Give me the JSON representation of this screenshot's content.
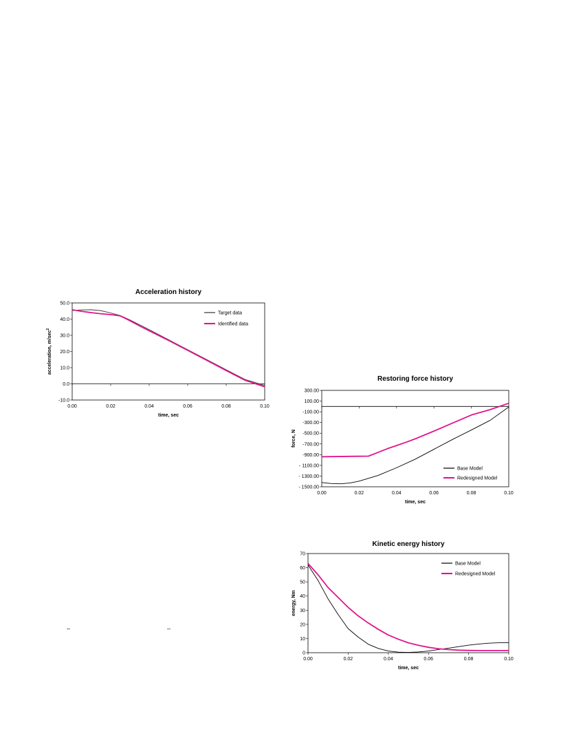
{
  "chart_data": [
    {
      "type": "line",
      "title": "Acceleration history",
      "xlabel": "time, sec",
      "ylabel": "acceleration, m/sec",
      "ylabel_sup": "2",
      "xlim": [
        0,
        0.1
      ],
      "ylim": [
        -10,
        50
      ],
      "x_ticks": [
        "0.00",
        "0.02",
        "0.04",
        "0.06",
        "0.08",
        "0.10"
      ],
      "y_ticks": [
        "-10.0",
        "0.0",
        "10.0",
        "20.0",
        "30.0",
        "40.0",
        "50.0"
      ],
      "legend": "top-right",
      "grid": false,
      "series": [
        {
          "name": "Target data",
          "color": "#404040",
          "x": [
            0,
            0.005,
            0.01,
            0.015,
            0.02,
            0.025,
            0.03,
            0.035,
            0.04,
            0.05,
            0.06,
            0.07,
            0.08,
            0.09,
            0.1
          ],
          "y": [
            45.3,
            45.7,
            45.8,
            45.2,
            43.8,
            42.2,
            39.5,
            36.5,
            33.5,
            27.3,
            21.1,
            14.9,
            8.7,
            2.6,
            -1.0
          ]
        },
        {
          "name": "Identified data",
          "color": "#e0148c",
          "x": [
            0,
            0.005,
            0.01,
            0.015,
            0.02,
            0.025,
            0.03,
            0.035,
            0.04,
            0.05,
            0.06,
            0.07,
            0.08,
            0.09,
            0.1
          ],
          "y": [
            45.8,
            44.8,
            44.0,
            43.3,
            42.8,
            42.0,
            39.0,
            35.8,
            32.8,
            26.9,
            20.7,
            14.5,
            8.2,
            2.1,
            -1.8
          ]
        }
      ]
    },
    {
      "type": "line",
      "title": "Restoring force history",
      "xlabel": "time, sec",
      "ylabel": "force, N",
      "xlim": [
        0,
        0.1
      ],
      "ylim": [
        -1500,
        300
      ],
      "x_ticks": [
        "0.00",
        "0.02",
        "0.04",
        "0.06",
        "0.08",
        "0.10"
      ],
      "y_ticks": [
        "- 1500.00",
        "- 1300.00",
        "- 1100.00",
        "-900.00",
        "-700.00",
        "-500.00",
        "-300.00",
        "-100.00",
        "100.00",
        "300.00"
      ],
      "legend": "bottom-right",
      "grid": false,
      "series": [
        {
          "name": "Base Model",
          "color": "#000000",
          "x": [
            0,
            0.005,
            0.01,
            0.015,
            0.02,
            0.03,
            0.04,
            0.05,
            0.06,
            0.07,
            0.08,
            0.09,
            0.1
          ],
          "y": [
            -1420,
            -1440,
            -1445,
            -1430,
            -1395,
            -1290,
            -1145,
            -985,
            -800,
            -615,
            -440,
            -260,
            -10
          ]
        },
        {
          "name": "Redesigned Model",
          "color": "#e0148c",
          "x": [
            0,
            0.005,
            0.01,
            0.015,
            0.02,
            0.025,
            0.03,
            0.035,
            0.04,
            0.045,
            0.05,
            0.06,
            0.07,
            0.08,
            0.09,
            0.1
          ],
          "y": [
            -940,
            -937,
            -935,
            -932,
            -930,
            -928,
            -860,
            -790,
            -730,
            -670,
            -605,
            -460,
            -310,
            -160,
            -60,
            60
          ]
        }
      ]
    },
    {
      "type": "line",
      "title": "Kinetic energy history",
      "xlabel": "time, sec",
      "ylabel": "energy, Nm",
      "xlim": [
        0,
        0.1
      ],
      "ylim": [
        0,
        70
      ],
      "x_ticks": [
        "0.00",
        "0.02",
        "0.04",
        "0.06",
        "0.08",
        "0.10"
      ],
      "y_ticks": [
        "0",
        "10",
        "20",
        "30",
        "40",
        "50",
        "60",
        "70"
      ],
      "legend": "top-right",
      "grid": false,
      "series": [
        {
          "name": "Base Model",
          "color": "#000000",
          "x": [
            0,
            0.005,
            0.01,
            0.015,
            0.02,
            0.025,
            0.03,
            0.035,
            0.04,
            0.045,
            0.05,
            0.055,
            0.06,
            0.065,
            0.07,
            0.075,
            0.08,
            0.085,
            0.09,
            0.095,
            0.1
          ],
          "y": [
            62,
            51,
            38,
            27,
            17,
            11,
            6,
            3,
            1.2,
            0.4,
            0.2,
            0.5,
            1.2,
            2.2,
            3.2,
            4.3,
            5.3,
            6.1,
            6.7,
            7.0,
            7.1
          ]
        },
        {
          "name": "Redesigned Model",
          "color": "#e0148c",
          "x": [
            0,
            0.005,
            0.01,
            0.015,
            0.02,
            0.025,
            0.03,
            0.035,
            0.04,
            0.045,
            0.05,
            0.055,
            0.06,
            0.065,
            0.07,
            0.075,
            0.08,
            0.085,
            0.09,
            0.095,
            0.1
          ],
          "y": [
            63,
            55,
            46,
            39,
            32,
            26,
            21,
            16.5,
            12.5,
            9.5,
            7,
            5.2,
            3.8,
            2.8,
            2.2,
            1.8,
            1.6,
            1.5,
            1.5,
            1.5,
            1.5
          ]
        }
      ]
    }
  ]
}
